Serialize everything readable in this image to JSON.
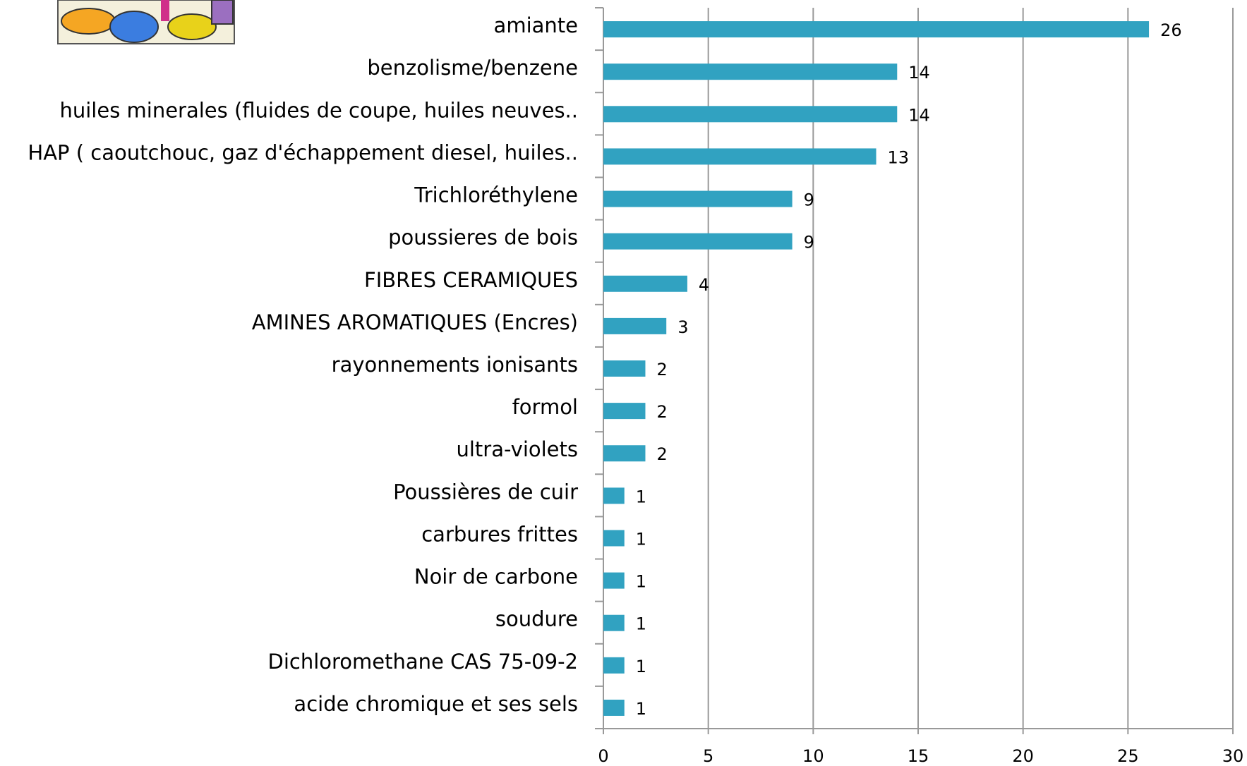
{
  "chart_data": {
    "type": "bar",
    "orientation": "horizontal",
    "categories": [
      "amiante",
      "benzolisme/benzene",
      "huiles minerales (fluides de coupe, huiles neuves..",
      "HAP ( caoutchouc, gaz d'échappement diesel, huiles..",
      "Trichloréthylene",
      "poussieres de bois",
      "FIBRES CERAMIQUES",
      "AMINES AROMATIQUES (Encres)",
      "rayonnements ionisants",
      "formol",
      "ultra-violets",
      "Poussières de cuir",
      "carbures frittes",
      "Noir de carbone",
      "soudure",
      "Dichloromethane CAS 75-09-2",
      "acide chromique et ses sels"
    ],
    "values": [
      26,
      14,
      14,
      13,
      9,
      9,
      4,
      3,
      2,
      2,
      2,
      1,
      1,
      1,
      1,
      1,
      1
    ],
    "color": "#31a2c1",
    "xlim": [
      0,
      30
    ],
    "xticks": [
      0,
      5,
      10,
      15,
      20,
      25,
      30
    ],
    "grid": true
  }
}
